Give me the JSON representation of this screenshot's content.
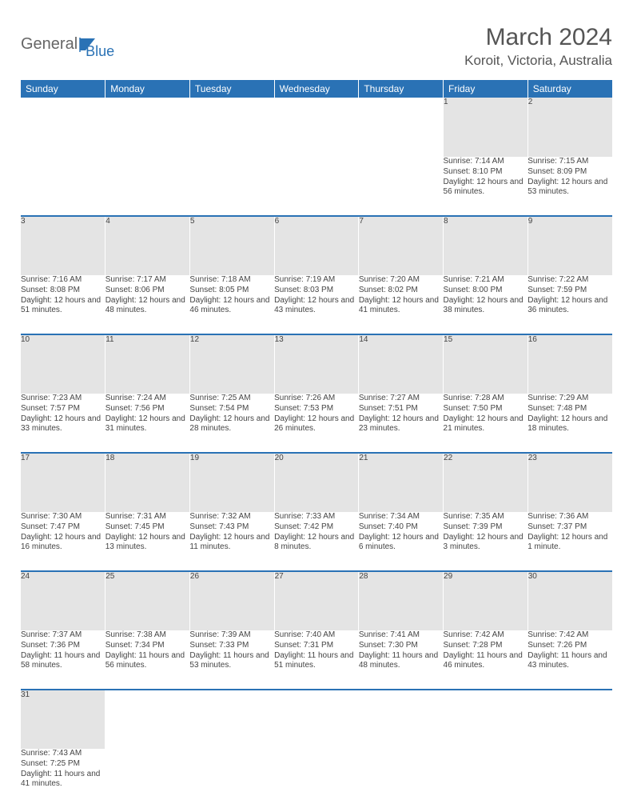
{
  "logo": {
    "text1": "General",
    "text2": "Blue"
  },
  "title": "March 2024",
  "location": "Koroit, Victoria, Australia",
  "colors": {
    "header_bg": "#2a72b5",
    "header_text": "#ffffff",
    "daynum_bg": "#e4e4e4",
    "row_border": "#2a72b5",
    "page_bg": "#ffffff",
    "text": "#444444"
  },
  "typography": {
    "title_fontsize": 30,
    "location_fontsize": 17,
    "dayheader_fontsize": 12,
    "daynum_fontsize": 11,
    "detail_fontsize": 10
  },
  "day_headers": [
    "Sunday",
    "Monday",
    "Tuesday",
    "Wednesday",
    "Thursday",
    "Friday",
    "Saturday"
  ],
  "weeks": [
    [
      null,
      null,
      null,
      null,
      null,
      {
        "num": "1",
        "sunrise": "7:14 AM",
        "sunset": "8:10 PM",
        "daylight": "12 hours and 56 minutes."
      },
      {
        "num": "2",
        "sunrise": "7:15 AM",
        "sunset": "8:09 PM",
        "daylight": "12 hours and 53 minutes."
      }
    ],
    [
      {
        "num": "3",
        "sunrise": "7:16 AM",
        "sunset": "8:08 PM",
        "daylight": "12 hours and 51 minutes."
      },
      {
        "num": "4",
        "sunrise": "7:17 AM",
        "sunset": "8:06 PM",
        "daylight": "12 hours and 48 minutes."
      },
      {
        "num": "5",
        "sunrise": "7:18 AM",
        "sunset": "8:05 PM",
        "daylight": "12 hours and 46 minutes."
      },
      {
        "num": "6",
        "sunrise": "7:19 AM",
        "sunset": "8:03 PM",
        "daylight": "12 hours and 43 minutes."
      },
      {
        "num": "7",
        "sunrise": "7:20 AM",
        "sunset": "8:02 PM",
        "daylight": "12 hours and 41 minutes."
      },
      {
        "num": "8",
        "sunrise": "7:21 AM",
        "sunset": "8:00 PM",
        "daylight": "12 hours and 38 minutes."
      },
      {
        "num": "9",
        "sunrise": "7:22 AM",
        "sunset": "7:59 PM",
        "daylight": "12 hours and 36 minutes."
      }
    ],
    [
      {
        "num": "10",
        "sunrise": "7:23 AM",
        "sunset": "7:57 PM",
        "daylight": "12 hours and 33 minutes."
      },
      {
        "num": "11",
        "sunrise": "7:24 AM",
        "sunset": "7:56 PM",
        "daylight": "12 hours and 31 minutes."
      },
      {
        "num": "12",
        "sunrise": "7:25 AM",
        "sunset": "7:54 PM",
        "daylight": "12 hours and 28 minutes."
      },
      {
        "num": "13",
        "sunrise": "7:26 AM",
        "sunset": "7:53 PM",
        "daylight": "12 hours and 26 minutes."
      },
      {
        "num": "14",
        "sunrise": "7:27 AM",
        "sunset": "7:51 PM",
        "daylight": "12 hours and 23 minutes."
      },
      {
        "num": "15",
        "sunrise": "7:28 AM",
        "sunset": "7:50 PM",
        "daylight": "12 hours and 21 minutes."
      },
      {
        "num": "16",
        "sunrise": "7:29 AM",
        "sunset": "7:48 PM",
        "daylight": "12 hours and 18 minutes."
      }
    ],
    [
      {
        "num": "17",
        "sunrise": "7:30 AM",
        "sunset": "7:47 PM",
        "daylight": "12 hours and 16 minutes."
      },
      {
        "num": "18",
        "sunrise": "7:31 AM",
        "sunset": "7:45 PM",
        "daylight": "12 hours and 13 minutes."
      },
      {
        "num": "19",
        "sunrise": "7:32 AM",
        "sunset": "7:43 PM",
        "daylight": "12 hours and 11 minutes."
      },
      {
        "num": "20",
        "sunrise": "7:33 AM",
        "sunset": "7:42 PM",
        "daylight": "12 hours and 8 minutes."
      },
      {
        "num": "21",
        "sunrise": "7:34 AM",
        "sunset": "7:40 PM",
        "daylight": "12 hours and 6 minutes."
      },
      {
        "num": "22",
        "sunrise": "7:35 AM",
        "sunset": "7:39 PM",
        "daylight": "12 hours and 3 minutes."
      },
      {
        "num": "23",
        "sunrise": "7:36 AM",
        "sunset": "7:37 PM",
        "daylight": "12 hours and 1 minute."
      }
    ],
    [
      {
        "num": "24",
        "sunrise": "7:37 AM",
        "sunset": "7:36 PM",
        "daylight": "11 hours and 58 minutes."
      },
      {
        "num": "25",
        "sunrise": "7:38 AM",
        "sunset": "7:34 PM",
        "daylight": "11 hours and 56 minutes."
      },
      {
        "num": "26",
        "sunrise": "7:39 AM",
        "sunset": "7:33 PM",
        "daylight": "11 hours and 53 minutes."
      },
      {
        "num": "27",
        "sunrise": "7:40 AM",
        "sunset": "7:31 PM",
        "daylight": "11 hours and 51 minutes."
      },
      {
        "num": "28",
        "sunrise": "7:41 AM",
        "sunset": "7:30 PM",
        "daylight": "11 hours and 48 minutes."
      },
      {
        "num": "29",
        "sunrise": "7:42 AM",
        "sunset": "7:28 PM",
        "daylight": "11 hours and 46 minutes."
      },
      {
        "num": "30",
        "sunrise": "7:42 AM",
        "sunset": "7:26 PM",
        "daylight": "11 hours and 43 minutes."
      }
    ],
    [
      {
        "num": "31",
        "sunrise": "7:43 AM",
        "sunset": "7:25 PM",
        "daylight": "11 hours and 41 minutes."
      },
      null,
      null,
      null,
      null,
      null,
      null
    ]
  ],
  "labels": {
    "sunrise": "Sunrise: ",
    "sunset": "Sunset: ",
    "daylight": "Daylight: "
  }
}
